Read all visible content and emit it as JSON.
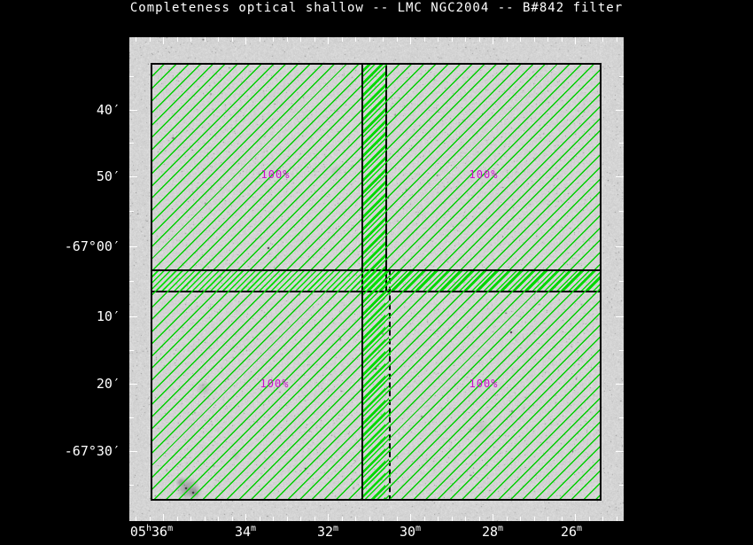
{
  "title": "Completeness optical shallow -- LMC NGC2004 -- B#842 filter",
  "field": "LMC NGC2004",
  "filter": "B#842",
  "colors": {
    "background": "#000000",
    "sky_image_gray": "#d4d4d4",
    "hatch_green": "#00cf00",
    "completeness_magenta": "#cc11cc",
    "axis_text_white": "#ffffff",
    "region_border": "#000000"
  },
  "axes": {
    "ra": {
      "labels": [
        "05h36m",
        "34m",
        "32m",
        "30m",
        "28m",
        "26m"
      ]
    },
    "dec": {
      "labels": [
        "40′",
        "50′",
        "-67°00′",
        "10′",
        "20′",
        "-67°30′"
      ]
    }
  },
  "regions": [
    {
      "position": "top-left",
      "completeness": "100%"
    },
    {
      "position": "top-right",
      "completeness": "100%"
    },
    {
      "position": "bottom-left",
      "completeness": "100%"
    },
    {
      "position": "bottom-right",
      "completeness": "100%"
    }
  ],
  "chart_data": {
    "type": "heatmap",
    "title": "Completeness optical shallow -- LMC NGC2004 -- B#842 filter",
    "x_tick_labels": [
      "05h36m",
      "34m",
      "32m",
      "30m",
      "28m",
      "26m"
    ],
    "y_tick_labels": [
      "40′",
      "50′",
      "-67°00′",
      "10′",
      "20′",
      "-67°30′"
    ],
    "x_axis_direction": "RA increasing to the left",
    "grid": false,
    "legend_position": "none",
    "regions": [
      {
        "position": "top-left",
        "completeness_value": "100%"
      },
      {
        "position": "top-right",
        "completeness_value": "100%"
      },
      {
        "position": "bottom-left",
        "completeness_value": "100%"
      },
      {
        "position": "bottom-right",
        "completeness_value": "100%"
      }
    ]
  }
}
